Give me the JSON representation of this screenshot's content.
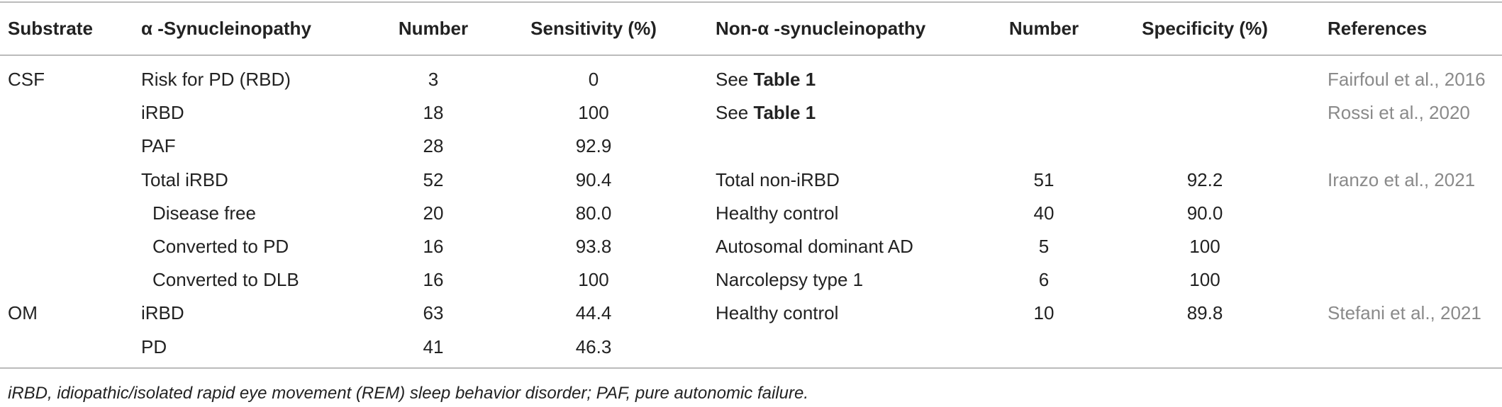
{
  "table": {
    "headers": [
      "Substrate",
      "α -Synucleinopathy",
      "Number",
      "Sensitivity (%)",
      "Non-α -synucleinopathy",
      "Number",
      "Specificity (%)",
      "References"
    ],
    "rows": [
      {
        "substrate": "CSF",
        "syn": "Risk for PD (RBD)",
        "number": "3",
        "sens": "0",
        "nonsyn": {
          "plain": "See",
          "bold": "Table 1"
        },
        "ref": "Fairfoul et al., 2016"
      },
      {
        "syn": "iRBD",
        "number": "18",
        "sens": "100",
        "nonsyn": {
          "plain": "See",
          "bold": "Table 1"
        },
        "ref": "Rossi et al., 2020"
      },
      {
        "syn": "PAF",
        "number": "28",
        "sens": "92.9"
      },
      {
        "syn": "Total iRBD",
        "number": "52",
        "sens": "90.4",
        "nonsyn": "Total non-iRBD",
        "number2": "51",
        "spec": "92.2",
        "ref": "Iranzo et al., 2021"
      },
      {
        "syn": "Disease free",
        "indent": true,
        "number": "20",
        "sens": "80.0",
        "nonsyn": "Healthy control",
        "number2": "40",
        "spec": "90.0"
      },
      {
        "syn": "Converted to PD",
        "indent": true,
        "number": "16",
        "sens": "93.8",
        "nonsyn": "Autosomal dominant AD",
        "number2": "5",
        "spec": "100"
      },
      {
        "syn": "Converted to DLB",
        "indent": true,
        "number": "16",
        "sens": "100",
        "nonsyn": "Narcolepsy type 1",
        "number2": "6",
        "spec": "100"
      },
      {
        "substrate": "OM",
        "syn": "iRBD",
        "number": "63",
        "sens": "44.4",
        "nonsyn": "Healthy control",
        "number2": "10",
        "spec": "89.8",
        "ref": "Stefani et al., 2021"
      },
      {
        "syn": "PD",
        "number": "41",
        "sens": "46.3"
      }
    ],
    "footnote": "iRBD, idiopathic/isolated rapid eye movement (REM) sleep behavior disorder; PAF, pure autonomic failure."
  }
}
